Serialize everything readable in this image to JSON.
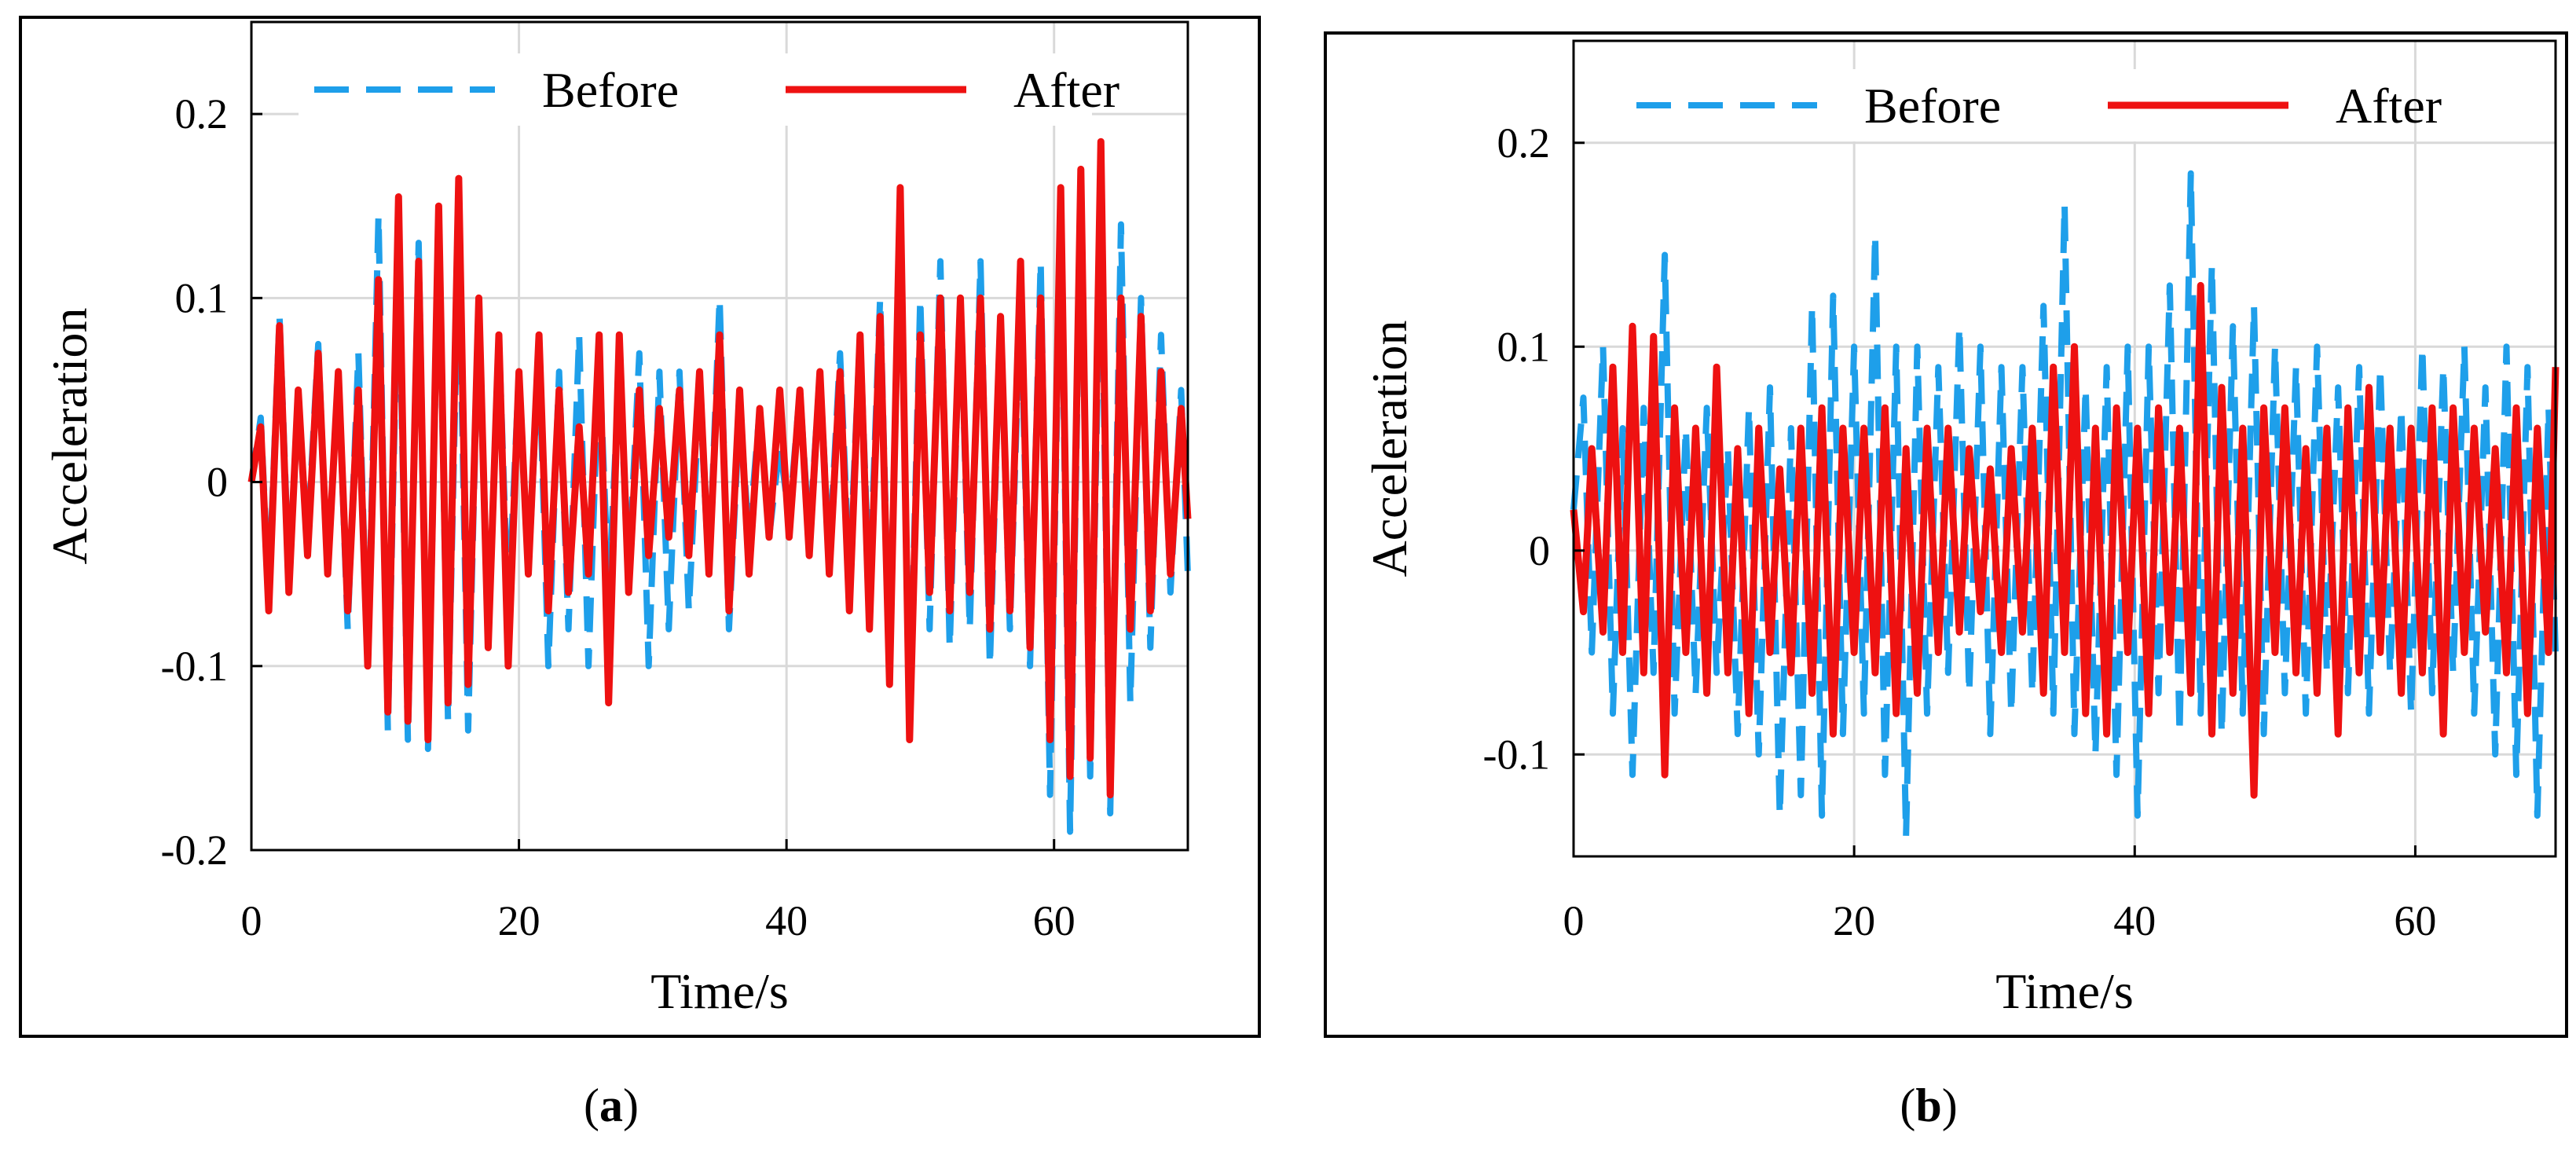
{
  "chart_data": [
    {
      "type": "line",
      "panel": "a",
      "caption_open": "(",
      "caption_letter": "a",
      "caption_close": ")",
      "title": "",
      "xlabel": "Time/s",
      "ylabel": "Acceleration",
      "xlim": [
        0,
        70
      ],
      "ylim": [
        -0.2,
        0.25
      ],
      "xticks": [
        0,
        20,
        40,
        60
      ],
      "xtick_labels": [
        "0",
        "20",
        "40",
        "60"
      ],
      "yticks": [
        -0.2,
        -0.1,
        0,
        0.1,
        0.2
      ],
      "ytick_labels": [
        "-0.2",
        "-0.1",
        "0",
        "0.1",
        "0.2"
      ],
      "grid": true,
      "legend_position": "top",
      "series": [
        {
          "name": "Before",
          "style": "dashed",
          "color": "#1E9FEA",
          "x": [
            0,
            0.7,
            1.3,
            2.1,
            2.8,
            3.5,
            4.2,
            5.0,
            5.7,
            6.5,
            7.2,
            8.0,
            8.7,
            9.5,
            10.2,
            11.0,
            11.7,
            12.5,
            13.2,
            14.0,
            14.7,
            15.5,
            16.2,
            17.0,
            17.7,
            18.5,
            19.2,
            20.0,
            20.7,
            21.5,
            22.2,
            23.0,
            23.7,
            24.5,
            25.2,
            26.0,
            26.7,
            27.5,
            28.2,
            29.0,
            29.7,
            30.5,
            31.2,
            32.0,
            32.7,
            33.5,
            34.2,
            35.0,
            35.7,
            36.5,
            37.2,
            38.0,
            38.7,
            39.5,
            40.2,
            41.0,
            41.7,
            42.5,
            43.2,
            44.0,
            44.7,
            45.5,
            46.2,
            47.0,
            47.7,
            48.5,
            49.2,
            50.0,
            50.7,
            51.5,
            52.2,
            53.0,
            53.7,
            54.5,
            55.2,
            56.0,
            56.7,
            57.5,
            58.2,
            59.0,
            59.7,
            60.5,
            61.2,
            62.0,
            62.7,
            63.5,
            64.2,
            65.0,
            65.7,
            66.5,
            67.2,
            68.0,
            68.7,
            69.5,
            70.0
          ],
          "y": [
            0,
            0.035,
            -0.06,
            0.09,
            -0.05,
            0.04,
            -0.03,
            0.075,
            -0.05,
            0.06,
            -0.08,
            0.07,
            -0.1,
            0.145,
            -0.135,
            0.13,
            -0.14,
            0.13,
            -0.145,
            0.14,
            -0.13,
            0.13,
            -0.135,
            0.1,
            -0.09,
            0.08,
            -0.07,
            0.06,
            -0.05,
            0.07,
            -0.1,
            0.06,
            -0.08,
            0.08,
            -0.1,
            0.07,
            -0.06,
            0.06,
            -0.05,
            0.07,
            -0.1,
            0.06,
            -0.08,
            0.06,
            -0.07,
            0.05,
            -0.05,
            0.1,
            -0.08,
            0.04,
            -0.03,
            0.04,
            -0.03,
            0.02,
            -0.02,
            0.05,
            -0.03,
            0.06,
            -0.04,
            0.07,
            -0.05,
            0.08,
            -0.06,
            0.1,
            -0.1,
            0.15,
            -0.13,
            0.1,
            -0.08,
            0.12,
            -0.09,
            0.1,
            -0.08,
            0.12,
            -0.1,
            0.09,
            -0.08,
            0.1,
            -0.1,
            0.12,
            -0.17,
            0.15,
            -0.19,
            0.16,
            -0.16,
            0.15,
            -0.18,
            0.14,
            -0.12,
            0.1,
            -0.09,
            0.08,
            -0.06,
            0.05,
            -0.05
          ]
        },
        {
          "name": "After",
          "style": "solid",
          "color": "#EE1111",
          "x": [
            0,
            0.7,
            1.3,
            2.1,
            2.8,
            3.5,
            4.2,
            5.0,
            5.7,
            6.5,
            7.2,
            8.0,
            8.7,
            9.5,
            10.2,
            11.0,
            11.7,
            12.5,
            13.2,
            14.0,
            14.7,
            15.5,
            16.2,
            17.0,
            17.7,
            18.5,
            19.2,
            20.0,
            20.7,
            21.5,
            22.2,
            23.0,
            23.7,
            24.5,
            25.2,
            26.0,
            26.7,
            27.5,
            28.2,
            29.0,
            29.7,
            30.5,
            31.2,
            32.0,
            32.7,
            33.5,
            34.2,
            35.0,
            35.7,
            36.5,
            37.2,
            38.0,
            38.7,
            39.5,
            40.2,
            41.0,
            41.7,
            42.5,
            43.2,
            44.0,
            44.7,
            45.5,
            46.2,
            47.0,
            47.7,
            48.5,
            49.2,
            50.0,
            50.7,
            51.5,
            52.2,
            53.0,
            53.7,
            54.5,
            55.2,
            56.0,
            56.7,
            57.5,
            58.2,
            59.0,
            59.7,
            60.5,
            61.2,
            62.0,
            62.7,
            63.5,
            64.2,
            65.0,
            65.7,
            66.5,
            67.2,
            68.0,
            68.7,
            69.5,
            70.0
          ],
          "y": [
            0,
            0.03,
            -0.07,
            0.085,
            -0.06,
            0.05,
            -0.04,
            0.07,
            -0.05,
            0.06,
            -0.07,
            0.05,
            -0.1,
            0.11,
            -0.125,
            0.155,
            -0.13,
            0.12,
            -0.14,
            0.15,
            -0.12,
            0.165,
            -0.11,
            0.1,
            -0.09,
            0.08,
            -0.1,
            0.06,
            -0.05,
            0.08,
            -0.07,
            0.05,
            -0.06,
            0.03,
            -0.05,
            0.08,
            -0.12,
            0.08,
            -0.06,
            0.05,
            -0.04,
            0.04,
            -0.03,
            0.05,
            -0.04,
            0.06,
            -0.05,
            0.08,
            -0.07,
            0.05,
            -0.05,
            0.04,
            -0.03,
            0.05,
            -0.03,
            0.05,
            -0.04,
            0.06,
            -0.05,
            0.06,
            -0.07,
            0.08,
            -0.08,
            0.09,
            -0.11,
            0.16,
            -0.14,
            0.08,
            -0.06,
            0.1,
            -0.07,
            0.1,
            -0.06,
            0.1,
            -0.08,
            0.09,
            -0.07,
            0.12,
            -0.09,
            0.1,
            -0.14,
            0.16,
            -0.16,
            0.17,
            -0.15,
            0.185,
            -0.17,
            0.1,
            -0.08,
            0.09,
            -0.07,
            0.06,
            -0.05,
            0.04,
            -0.02
          ]
        }
      ]
    },
    {
      "type": "line",
      "panel": "b",
      "caption_open": "(",
      "caption_letter": "b",
      "caption_close": ")",
      "title": "",
      "xlabel": "Time/s",
      "ylabel": "Acceleration",
      "xlim": [
        0,
        70
      ],
      "ylim": [
        -0.15,
        0.25
      ],
      "xticks": [
        0,
        20,
        40,
        60
      ],
      "xtick_labels": [
        "0",
        "20",
        "40",
        "60"
      ],
      "yticks": [
        -0.1,
        0,
        0.1,
        0.2
      ],
      "ytick_labels": [
        "-0.1",
        "0",
        "0.1",
        "0.2"
      ],
      "grid": true,
      "legend_position": "top",
      "series": [
        {
          "name": "Before",
          "style": "dashed",
          "color": "#1E9FEA",
          "x": [
            0,
            0.7,
            1.3,
            2.1,
            2.8,
            3.5,
            4.2,
            5.0,
            5.7,
            6.5,
            7.2,
            8.0,
            8.7,
            9.5,
            10.2,
            11.0,
            11.7,
            12.5,
            13.2,
            14.0,
            14.7,
            15.5,
            16.2,
            17.0,
            17.7,
            18.5,
            19.2,
            20.0,
            20.7,
            21.5,
            22.2,
            23.0,
            23.7,
            24.5,
            25.2,
            26.0,
            26.7,
            27.5,
            28.2,
            29.0,
            29.7,
            30.5,
            31.2,
            32.0,
            32.7,
            33.5,
            34.2,
            35.0,
            35.7,
            36.5,
            37.2,
            38.0,
            38.7,
            39.5,
            40.2,
            41.0,
            41.7,
            42.5,
            43.2,
            44.0,
            44.7,
            45.5,
            46.2,
            47.0,
            47.7,
            48.5,
            49.2,
            50.0,
            50.7,
            51.5,
            52.2,
            53.0,
            53.7,
            54.5,
            55.2,
            56.0,
            56.7,
            57.5,
            58.2,
            59.0,
            59.7,
            60.5,
            61.2,
            62.0,
            62.7,
            63.5,
            64.2,
            65.0,
            65.7,
            66.5,
            67.2,
            68.0,
            68.7,
            69.5,
            70.0
          ],
          "y": [
            0.02,
            0.075,
            -0.05,
            0.1,
            -0.08,
            0.06,
            -0.11,
            0.07,
            -0.06,
            0.145,
            -0.08,
            0.06,
            -0.07,
            0.07,
            -0.06,
            0.05,
            -0.09,
            0.07,
            -0.1,
            0.08,
            -0.13,
            0.06,
            -0.12,
            0.12,
            -0.13,
            0.125,
            -0.09,
            0.1,
            -0.08,
            0.155,
            -0.11,
            0.1,
            -0.14,
            0.1,
            -0.08,
            0.09,
            -0.06,
            0.11,
            -0.07,
            0.1,
            -0.09,
            0.09,
            -0.08,
            0.09,
            -0.07,
            0.12,
            -0.08,
            0.17,
            -0.09,
            0.08,
            -0.1,
            0.09,
            -0.11,
            0.1,
            -0.13,
            0.1,
            -0.07,
            0.13,
            -0.09,
            0.185,
            -0.08,
            0.14,
            -0.09,
            0.11,
            -0.08,
            0.12,
            -0.09,
            0.1,
            -0.07,
            0.09,
            -0.08,
            0.1,
            -0.06,
            0.08,
            -0.07,
            0.09,
            -0.08,
            0.09,
            -0.06,
            0.07,
            -0.08,
            0.1,
            -0.07,
            0.09,
            -0.06,
            0.1,
            -0.08,
            0.08,
            -0.1,
            0.1,
            -0.11,
            0.09,
            -0.13,
            0.07,
            -0.05
          ]
        },
        {
          "name": "After",
          "style": "solid",
          "color": "#EE1111",
          "x": [
            0,
            0.7,
            1.3,
            2.1,
            2.8,
            3.5,
            4.2,
            5.0,
            5.7,
            6.5,
            7.2,
            8.0,
            8.7,
            9.5,
            10.2,
            11.0,
            11.7,
            12.5,
            13.2,
            14.0,
            14.7,
            15.5,
            16.2,
            17.0,
            17.7,
            18.5,
            19.2,
            20.0,
            20.7,
            21.5,
            22.2,
            23.0,
            23.7,
            24.5,
            25.2,
            26.0,
            26.7,
            27.5,
            28.2,
            29.0,
            29.7,
            30.5,
            31.2,
            32.0,
            32.7,
            33.5,
            34.2,
            35.0,
            35.7,
            36.5,
            37.2,
            38.0,
            38.7,
            39.5,
            40.2,
            41.0,
            41.7,
            42.5,
            43.2,
            44.0,
            44.7,
            45.5,
            46.2,
            47.0,
            47.7,
            48.5,
            49.2,
            50.0,
            50.7,
            51.5,
            52.2,
            53.0,
            53.7,
            54.5,
            55.2,
            56.0,
            56.7,
            57.5,
            58.2,
            59.0,
            59.7,
            60.5,
            61.2,
            62.0,
            62.7,
            63.5,
            64.2,
            65.0,
            65.7,
            66.5,
            67.2,
            68.0,
            68.7,
            69.5,
            70.0
          ],
          "y": [
            0.02,
            -0.03,
            0.05,
            -0.04,
            0.09,
            -0.05,
            0.11,
            -0.06,
            0.105,
            -0.11,
            0.07,
            -0.05,
            0.06,
            -0.07,
            0.09,
            -0.06,
            0.05,
            -0.08,
            0.06,
            -0.05,
            0.04,
            -0.06,
            0.06,
            -0.07,
            0.07,
            -0.09,
            0.06,
            -0.05,
            0.06,
            -0.06,
            0.07,
            -0.08,
            0.05,
            -0.07,
            0.06,
            -0.05,
            0.06,
            -0.04,
            0.05,
            -0.03,
            0.04,
            -0.05,
            0.05,
            -0.04,
            0.06,
            -0.07,
            0.09,
            -0.05,
            0.1,
            -0.08,
            0.06,
            -0.09,
            0.07,
            -0.05,
            0.06,
            -0.08,
            0.07,
            -0.05,
            0.06,
            -0.07,
            0.13,
            -0.09,
            0.08,
            -0.07,
            0.06,
            -0.12,
            0.07,
            -0.05,
            0.07,
            -0.06,
            0.05,
            -0.07,
            0.06,
            -0.09,
            0.07,
            -0.06,
            0.08,
            -0.05,
            0.06,
            -0.07,
            0.06,
            -0.06,
            0.07,
            -0.09,
            0.07,
            -0.05,
            0.06,
            -0.04,
            0.05,
            -0.06,
            0.07,
            -0.08,
            0.06,
            -0.05,
            0.09
          ]
        }
      ]
    }
  ]
}
